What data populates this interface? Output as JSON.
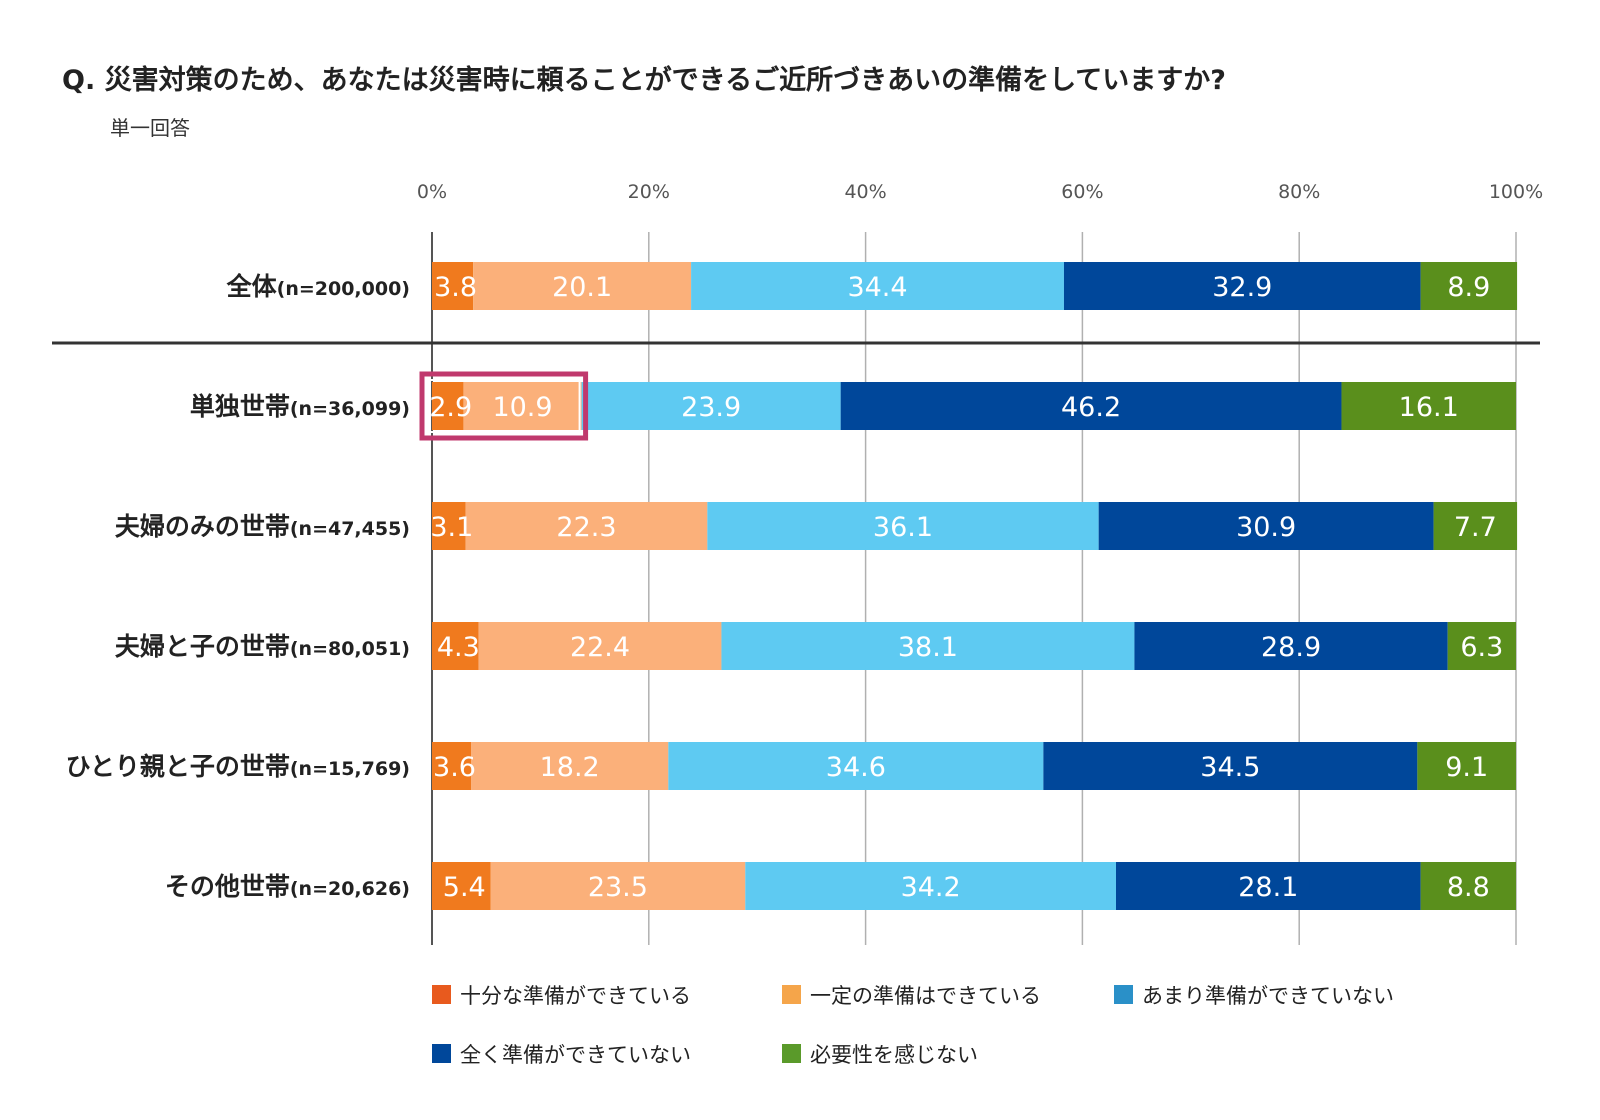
{
  "header": {
    "title": "Q. 災害対策のため、あなたは災害時に頼ることができるご近所づきあいの準備をしていますか?",
    "subtitle": "単一回答"
  },
  "colors": {
    "series": [
      "#f07a1e",
      "#fbb07a",
      "#5ecaf2",
      "#00479a",
      "#5a8f1c"
    ],
    "legend": [
      "#e85a1e",
      "#f5a54a",
      "#2a90c8",
      "#00479a",
      "#5a9a2a"
    ],
    "highlight": "#c0396d"
  },
  "chart_data": {
    "type": "bar",
    "orientation": "horizontal",
    "stacked": true,
    "percent": true,
    "xlim": [
      0,
      100
    ],
    "x_ticks": [
      "0%",
      "20%",
      "40%",
      "60%",
      "80%",
      "100%"
    ],
    "categories": [
      {
        "label": "全体",
        "n": "(n=200,000)"
      },
      {
        "label": "単独世帯",
        "n": "(n=36,099)"
      },
      {
        "label": "夫婦のみの世帯",
        "n": "(n=47,455)"
      },
      {
        "label": "夫婦と子の世帯",
        "n": "(n=80,051)"
      },
      {
        "label": "ひとり親と子の世帯",
        "n": "(n=15,769)"
      },
      {
        "label": "その他世帯",
        "n": "(n=20,626)"
      }
    ],
    "series": [
      {
        "name": "十分な準備ができている",
        "values": [
          3.8,
          2.9,
          3.1,
          4.3,
          3.6,
          5.4
        ]
      },
      {
        "name": "一定の準備はできている",
        "values": [
          20.1,
          10.9,
          22.3,
          22.4,
          18.2,
          23.5
        ]
      },
      {
        "name": "あまり準備ができていない",
        "values": [
          34.4,
          23.9,
          36.1,
          38.1,
          34.6,
          34.2
        ]
      },
      {
        "name": "全く準備ができていない",
        "values": [
          32.9,
          46.2,
          30.9,
          28.9,
          34.5,
          28.1
        ]
      },
      {
        "name": "必要性を感じない",
        "values": [
          8.9,
          16.1,
          7.7,
          6.3,
          9.1,
          8.8
        ]
      }
    ],
    "highlight": {
      "category_index": 1,
      "series_indices": [
        0,
        1
      ]
    },
    "separator_after_category": 0,
    "grid": true,
    "legend_position": "bottom"
  }
}
